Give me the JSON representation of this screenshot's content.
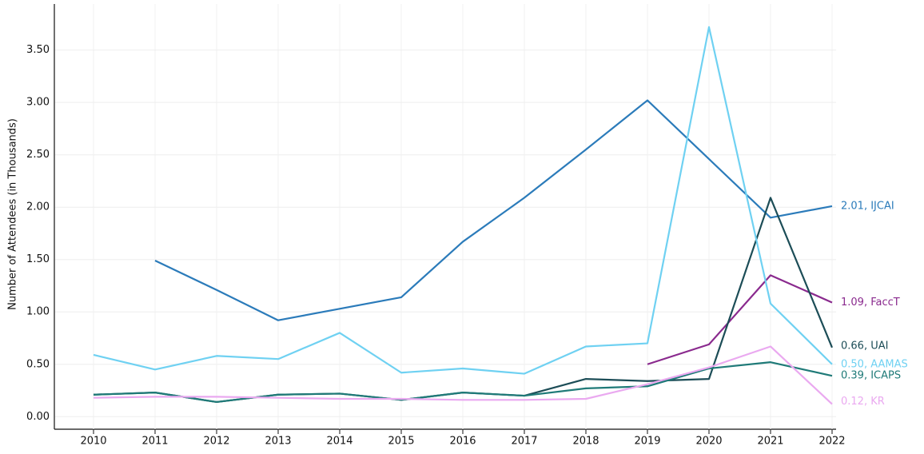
{
  "chart_data": {
    "type": "line",
    "y_label": "Number of Attendees (in Thousands)",
    "categories": [
      "2010",
      "2011",
      "2012",
      "2013",
      "2014",
      "2015",
      "2016",
      "2017",
      "2018",
      "2019",
      "2020",
      "2021",
      "2022"
    ],
    "ylim": [
      -0.12,
      3.94
    ],
    "yticks": [
      {
        "value": 0,
        "label": "0.00"
      },
      {
        "value": 0.5,
        "label": "0.50"
      },
      {
        "value": 1,
        "label": "1.00"
      },
      {
        "value": 1.5,
        "label": "1.50"
      },
      {
        "value": 2,
        "label": "2.00"
      },
      {
        "value": 2.5,
        "label": "2.50"
      },
      {
        "value": 3,
        "label": "3.00"
      },
      {
        "value": 3.5,
        "label": "3.50"
      }
    ],
    "grid": true,
    "series": [
      {
        "name": "IJCAI",
        "color": "#2b7bba",
        "values": [
          null,
          1.49,
          1.21,
          0.92,
          1.03,
          1.14,
          1.67,
          2.09,
          2.55,
          3.02,
          2.46,
          1.9,
          2.01
        ],
        "value_labels": [
          null,
          null,
          null,
          null,
          null,
          null,
          null,
          null,
          null,
          null,
          null,
          null,
          "2.01, IJCAI"
        ]
      },
      {
        "name": "FaccT",
        "color": "#8a2a8e",
        "values": [
          null,
          null,
          null,
          null,
          null,
          null,
          null,
          null,
          null,
          0.5,
          0.69,
          1.35,
          1.09
        ],
        "value_labels": [
          null,
          null,
          null,
          null,
          null,
          null,
          null,
          null,
          null,
          null,
          null,
          null,
          "1.09, FaccT"
        ]
      },
      {
        "name": "UAI",
        "color": "#1c4d57",
        "values": [
          0.21,
          0.23,
          0.14,
          0.21,
          0.22,
          0.16,
          0.23,
          0.2,
          0.36,
          0.34,
          0.36,
          2.09,
          0.66
        ],
        "value_labels": [
          null,
          null,
          null,
          null,
          null,
          null,
          null,
          null,
          null,
          null,
          null,
          null,
          "0.66, UAI"
        ]
      },
      {
        "name": "AAMAS",
        "color": "#6fd1f2",
        "values": [
          0.59,
          0.45,
          0.58,
          0.55,
          0.8,
          0.42,
          0.46,
          0.41,
          0.67,
          0.7,
          3.72,
          1.08,
          0.5
        ],
        "value_labels": [
          null,
          null,
          null,
          null,
          null,
          null,
          null,
          null,
          null,
          null,
          null,
          null,
          "0.50, AAMAS"
        ]
      },
      {
        "name": "ICAPS",
        "color": "#1f7a78",
        "values": [
          0.21,
          0.23,
          0.14,
          0.21,
          0.22,
          0.16,
          0.23,
          0.2,
          0.27,
          0.29,
          0.46,
          0.52,
          0.39
        ],
        "value_labels": [
          null,
          null,
          null,
          null,
          null,
          null,
          null,
          null,
          null,
          null,
          null,
          null,
          "0.39, ICAPS"
        ]
      },
      {
        "name": "KR",
        "color": "#eaa9f0",
        "values": [
          0.18,
          0.19,
          0.19,
          0.18,
          0.17,
          0.17,
          0.16,
          0.16,
          0.17,
          0.31,
          0.47,
          0.67,
          0.12
        ],
        "value_labels": [
          null,
          null,
          null,
          null,
          null,
          null,
          null,
          null,
          null,
          null,
          null,
          null,
          "0.12, KR"
        ]
      }
    ]
  }
}
